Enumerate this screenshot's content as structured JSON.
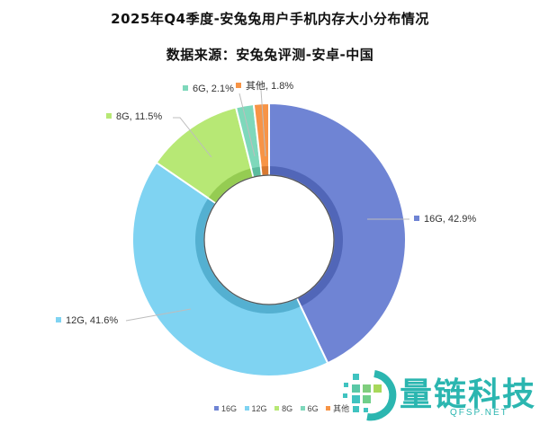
{
  "header": {
    "title": "2025年Q4季度-安兔兔用户手机内存大小分布情况",
    "subtitle": "数据来源：安兔兔评测-安卓-中国"
  },
  "labels": {
    "l16": "16G, 42.9%",
    "l12": "12G, 41.6%",
    "l8": "8G, 11.5%",
    "l6": "6G, 2.1%",
    "lother": "其他, 1.8%"
  },
  "legend": {
    "i16": "16G",
    "i12": "12G",
    "i8": "8G",
    "i6": "6G",
    "iother": "其他"
  },
  "watermark": {
    "name": "量链科技",
    "domain": "QFSP.NET"
  },
  "colors": {
    "16G": "#6f84d4",
    "12G": "#7fd3f2",
    "8G": "#b7e875",
    "6G": "#7ed8bb",
    "其他": "#f79446"
  },
  "chart_data": {
    "type": "pie",
    "subtype": "donut",
    "title": "2025年Q4季度-安兔兔用户手机内存大小分布情况",
    "subtitle": "数据来源：安兔兔评测-安卓-中国",
    "categories": [
      "16G",
      "12G",
      "8G",
      "6G",
      "其他"
    ],
    "values": [
      42.9,
      41.6,
      11.5,
      2.1,
      1.8
    ],
    "unit": "%",
    "data_labels": [
      "16G, 42.9%",
      "12G, 41.6%",
      "8G, 11.5%",
      "6G, 2.1%",
      "其他, 1.8%"
    ],
    "legend_position": "bottom",
    "start_angle": "12 o'clock, clockwise"
  }
}
